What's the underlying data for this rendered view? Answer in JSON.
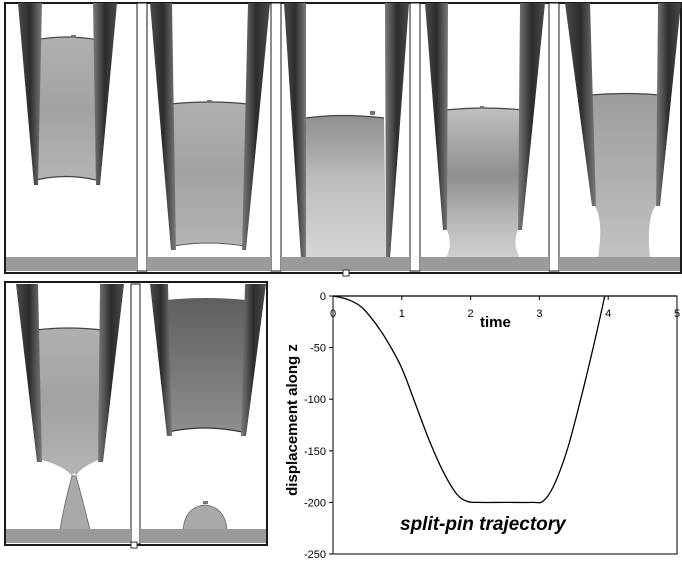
{
  "figure": {
    "top_row_frames": 5,
    "bottom_row_frames": 2,
    "plot_annotation": "split-pin trajectory"
  },
  "chart_data": {
    "type": "line",
    "xlabel": "time",
    "ylabel": "displacement along z",
    "xlim": [
      0,
      5
    ],
    "ylim": [
      -250,
      0
    ],
    "x_ticks": [
      "0",
      "1",
      "2",
      "3",
      "4",
      "5"
    ],
    "y_ticks": [
      "0",
      "-50",
      "-100",
      "-150",
      "-200",
      "-250"
    ],
    "series": [
      {
        "x": [
          0,
          0.2,
          0.4,
          0.6,
          0.8,
          1.0,
          1.2,
          1.4,
          1.6,
          1.8,
          1.95,
          2.1,
          2.5,
          2.9,
          3.05,
          3.2,
          3.4,
          3.6,
          3.8,
          3.95
        ],
        "y": [
          0,
          -3,
          -10,
          -25,
          -45,
          -70,
          -105,
          -140,
          -170,
          -192,
          -199,
          -200,
          -200,
          -200,
          -199,
          -185,
          -150,
          -100,
          -45,
          0
        ]
      }
    ]
  },
  "colors": {
    "tip_dark": "#3c3c3c",
    "tip_mid": "#8d8d8d",
    "liquid": "#a7a7a7",
    "liquid_dark": "#7a7a7a",
    "substrate": "#9a9a9a",
    "frame": "#1a1a1a"
  }
}
